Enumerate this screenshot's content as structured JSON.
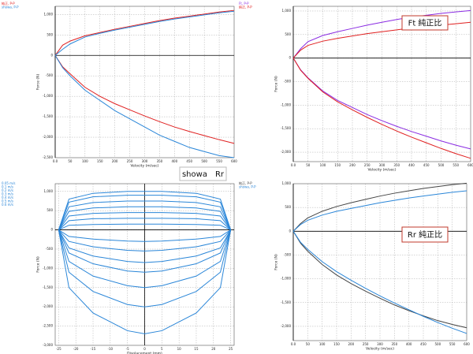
{
  "chart_data": [
    {
      "type": "line",
      "xlabel": "Velocity (m/sec)",
      "ylabel": "Force (N)",
      "annotation": "showa　Rr",
      "x": [
        0,
        25,
        50,
        100,
        150,
        200,
        250,
        300,
        350,
        400,
        450,
        500,
        550,
        600
      ],
      "xlim": [
        0,
        600
      ],
      "xticks": [
        {
          "value": 0,
          "label": "0.0"
        },
        50,
        100,
        150,
        200,
        250,
        300,
        350,
        400,
        450,
        500,
        550,
        600
      ],
      "ylim": [
        -2500,
        1200
      ],
      "yticks": [
        {
          "value": 1000,
          "label": "1,000"
        },
        500,
        0,
        -500,
        {
          "value": -1000,
          "label": "-1,000"
        },
        {
          "value": -1500,
          "label": "-1,500"
        },
        {
          "value": -2000,
          "label": "-2,000"
        },
        {
          "value": -2500,
          "label": "-2,500"
        }
      ],
      "grid": true,
      "series": [
        {
          "name": "純正, P-P",
          "color": "#e02020",
          "values": [
            0,
            250,
            350,
            480,
            560,
            640,
            710,
            780,
            850,
            910,
            960,
            1010,
            1060,
            1100
          ],
          "values_lower": [
            0,
            -280,
            -450,
            -780,
            -1000,
            -1180,
            -1330,
            -1480,
            -1620,
            -1750,
            -1860,
            -1960,
            -2060,
            -2150
          ]
        },
        {
          "name": "showa, P-P",
          "color": "#2a86d8",
          "values": [
            0,
            150,
            280,
            450,
            540,
            620,
            690,
            760,
            830,
            890,
            940,
            990,
            1040,
            1080
          ],
          "values_lower": [
            0,
            -300,
            -500,
            -850,
            -1100,
            -1350,
            -1550,
            -1750,
            -1950,
            -2100,
            -2250,
            -2350,
            -2450,
            -2500
          ]
        }
      ]
    },
    {
      "type": "line",
      "xlabel": "Velocity (m/sec)",
      "ylabel": "Force (N)",
      "annotation": "Ft 純正比",
      "x": [
        0,
        25,
        50,
        100,
        150,
        200,
        250,
        300,
        350,
        400,
        450,
        500,
        550,
        600
      ],
      "xlim": [
        0,
        600
      ],
      "xticks": [
        {
          "value": 0,
          "label": "0.0"
        },
        50,
        100,
        150,
        200,
        250,
        300,
        350,
        400,
        450,
        500,
        550,
        600
      ],
      "ylim": [
        -2200,
        1100
      ],
      "yticks": [
        {
          "value": 1000,
          "label": "1,000"
        },
        500,
        0,
        -500,
        {
          "value": -1000,
          "label": "-1,000"
        },
        {
          "value": -1500,
          "label": "-1,500"
        },
        {
          "value": -2000,
          "label": "-2,000"
        }
      ],
      "grid": true,
      "series": [
        {
          "name": "Ft, P-P",
          "color": "#8a2be2",
          "values": [
            0,
            200,
            350,
            480,
            560,
            630,
            700,
            760,
            820,
            870,
            910,
            950,
            980,
            1010
          ],
          "values_lower": [
            0,
            -250,
            -420,
            -700,
            -900,
            -1050,
            -1200,
            -1330,
            -1450,
            -1560,
            -1660,
            -1760,
            -1850,
            -1930
          ]
        },
        {
          "name": "純正, P-P",
          "color": "#e02020",
          "values": [
            0,
            170,
            270,
            360,
            420,
            470,
            520,
            560,
            600,
            640,
            670,
            700,
            730,
            760
          ],
          "values_lower": [
            0,
            -260,
            -430,
            -720,
            -930,
            -1100,
            -1260,
            -1410,
            -1550,
            -1680,
            -1800,
            -1920,
            -2030,
            -2130
          ]
        }
      ]
    },
    {
      "type": "line",
      "xlabel": "Displacement (mm)",
      "ylabel": "Force (N)",
      "x": [
        -25,
        -22,
        -15,
        -5,
        0,
        5,
        15,
        22,
        25
      ],
      "xlim": [
        -26,
        26
      ],
      "xticks": [
        -25,
        -20,
        -15,
        -10,
        -5,
        0,
        5,
        10,
        15,
        20,
        25
      ],
      "ylim": [
        -3000,
        1200
      ],
      "yticks": [
        {
          "value": 1000,
          "label": "1,000"
        },
        500,
        0,
        -500,
        {
          "value": -1000,
          "label": "-1,000"
        },
        {
          "value": -1500,
          "label": "-1,500"
        },
        {
          "value": -2000,
          "label": "-2,000"
        },
        {
          "value": -2500,
          "label": "-2,500"
        },
        {
          "value": -3000,
          "label": "-3,000"
        }
      ],
      "grid": true,
      "series": [
        {
          "name": "0.05 m/s",
          "color": "#2a86d8",
          "values": [
            0,
            800,
            950,
            1000,
            1000,
            1000,
            950,
            800,
            0
          ],
          "values_lower": [
            0,
            -170,
            -240,
            -290,
            -300,
            -290,
            -240,
            -170,
            0
          ]
        },
        {
          "name": "0.1 m/s",
          "color": "#2a86d8",
          "values": [
            0,
            720,
            860,
            900,
            900,
            900,
            860,
            720,
            0
          ],
          "values_lower": [
            0,
            -300,
            -440,
            -530,
            -550,
            -530,
            -440,
            -300,
            0
          ]
        },
        {
          "name": "0.2 m/s",
          "color": "#2a86d8",
          "values": [
            0,
            600,
            710,
            750,
            750,
            750,
            710,
            600,
            0
          ],
          "values_lower": [
            0,
            -470,
            -680,
            -820,
            -850,
            -820,
            -680,
            -470,
            0
          ]
        },
        {
          "name": "0.3 m/s",
          "color": "#2a86d8",
          "values": [
            0,
            480,
            570,
            600,
            600,
            600,
            570,
            480,
            0
          ],
          "values_lower": [
            0,
            -600,
            -880,
            -1070,
            -1100,
            -1070,
            -880,
            -600,
            0
          ]
        },
        {
          "name": "0.4 m/s",
          "color": "#2a86d8",
          "values": [
            0,
            360,
            430,
            450,
            450,
            450,
            430,
            360,
            0
          ],
          "values_lower": [
            0,
            -820,
            -1200,
            -1450,
            -1500,
            -1450,
            -1200,
            -820,
            0
          ]
        },
        {
          "name": "0.5 m/s",
          "color": "#2a86d8",
          "values": [
            0,
            240,
            290,
            300,
            300,
            300,
            290,
            240,
            0
          ],
          "values_lower": [
            0,
            -1100,
            -1600,
            -1940,
            -2000,
            -1940,
            -1600,
            -1100,
            0
          ]
        },
        {
          "name": "0.6 m/s",
          "color": "#2a86d8",
          "values": [
            0,
            120,
            140,
            150,
            150,
            150,
            140,
            120,
            0
          ],
          "values_lower": [
            0,
            -1500,
            -2160,
            -2620,
            -2700,
            -2620,
            -2160,
            -1500,
            0
          ]
        }
      ]
    },
    {
      "type": "line",
      "xlabel": "Velocity (m/sec)",
      "ylabel": "Force (N)",
      "annotation": "Rr 純正比",
      "x": [
        0,
        25,
        50,
        100,
        150,
        200,
        250,
        300,
        350,
        400,
        450,
        500,
        550,
        600
      ],
      "xlim": [
        0,
        600
      ],
      "xticks": [
        {
          "value": 0,
          "label": "0.0"
        },
        50,
        100,
        150,
        200,
        250,
        300,
        350,
        400,
        450,
        500,
        550,
        600
      ],
      "ylim": [
        -2300,
        1000
      ],
      "yticks": [
        {
          "value": 1000,
          "label": "1,000"
        },
        500,
        0,
        -500,
        {
          "value": -1000,
          "label": "-1,000"
        },
        {
          "value": -1500,
          "label": "-1,500"
        },
        {
          "value": -2000,
          "label": "-2,000"
        }
      ],
      "grid": true,
      "series": [
        {
          "name": "純正, P-P",
          "color": "#444444",
          "values": [
            0,
            160,
            280,
            420,
            520,
            600,
            670,
            740,
            800,
            850,
            900,
            940,
            980,
            1010
          ],
          "values_lower": [
            0,
            -250,
            -420,
            -700,
            -920,
            -1100,
            -1260,
            -1410,
            -1550,
            -1670,
            -1780,
            -1880,
            -1960,
            -2030
          ]
        },
        {
          "name": "showa, P-P",
          "color": "#2a86d8",
          "values": [
            0,
            140,
            230,
            340,
            420,
            480,
            540,
            600,
            650,
            700,
            740,
            780,
            820,
            850
          ],
          "values_lower": [
            0,
            -230,
            -380,
            -640,
            -850,
            -1030,
            -1200,
            -1360,
            -1510,
            -1650,
            -1790,
            -1920,
            -2040,
            -2150
          ]
        }
      ]
    }
  ]
}
